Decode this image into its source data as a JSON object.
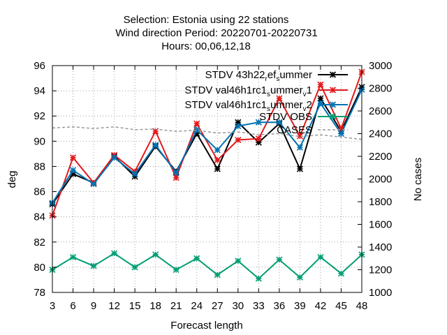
{
  "title": {
    "line1": "Selection: Estonia using     22 stations",
    "line2": "Wind direction   Period: 20220701-20220731",
    "line3": "Hours:  00,06,12,18"
  },
  "chart_data": {
    "type": "line",
    "xlabel": "Forecast length",
    "ylabel": "deg",
    "y2label": "No cases",
    "x": [
      3,
      6,
      9,
      12,
      15,
      18,
      21,
      24,
      27,
      30,
      33,
      36,
      39,
      42,
      45,
      48
    ],
    "xlim": [
      3,
      48
    ],
    "ylim": [
      78,
      96
    ],
    "y2lim": [
      1000,
      3000
    ],
    "yticks": [
      78,
      80,
      82,
      84,
      86,
      88,
      90,
      92,
      94,
      96
    ],
    "y2ticks": [
      1000,
      1200,
      1400,
      1600,
      1800,
      2000,
      2200,
      2400,
      2600,
      2800,
      3000
    ],
    "grid": true,
    "legend_position": "top-right",
    "series": [
      {
        "legend": [
          {
            "text": "STDV 43h22"
          },
          {
            "text": "r",
            "sub": true
          },
          {
            "text": "ef"
          },
          {
            "text": "s",
            "sub": true
          },
          {
            "text": "ummer"
          }
        ],
        "color": "#000000",
        "marker": "star",
        "dash": false,
        "axis": "y",
        "values": [
          85.0,
          87.4,
          86.7,
          88.8,
          87.2,
          89.6,
          87.6,
          90.6,
          87.8,
          91.5,
          89.9,
          91.4,
          87.8,
          93.4,
          90.8,
          94.3
        ]
      },
      {
        "legend": [
          {
            "text": "STDV val46h1rc1"
          },
          {
            "text": "s",
            "sub": true
          },
          {
            "text": "ummer"
          },
          {
            "text": "v",
            "sub": true
          },
          {
            "text": "1"
          }
        ],
        "color": "#e41a1c",
        "marker": "star",
        "dash": false,
        "axis": "y",
        "values": [
          84.1,
          88.7,
          86.7,
          88.9,
          87.6,
          90.8,
          87.1,
          91.4,
          88.5,
          90.1,
          90.2,
          93.4,
          90.4,
          94.5,
          91.0,
          95.5
        ]
      },
      {
        "legend": [
          {
            "text": "STDV val46h1rc1"
          },
          {
            "text": "s",
            "sub": true
          },
          {
            "text": "ummer"
          },
          {
            "text": "v",
            "sub": true
          },
          {
            "text": "2"
          }
        ],
        "color": "#0072b2",
        "marker": "star",
        "dash": false,
        "axis": "y",
        "values": [
          85.1,
          87.7,
          86.6,
          88.7,
          87.4,
          89.7,
          87.5,
          90.9,
          89.3,
          91.2,
          91.5,
          91.5,
          89.5,
          93.0,
          90.6,
          94.1
        ]
      },
      {
        "legend": [
          {
            "text": "STDV OBS"
          }
        ],
        "color": "#009e73",
        "marker": "star",
        "dash": false,
        "axis": "y",
        "values": [
          79.8,
          80.8,
          80.1,
          81.1,
          80.0,
          81.0,
          79.8,
          80.7,
          79.4,
          80.5,
          79.1,
          80.6,
          79.2,
          80.8,
          79.5,
          81.0
        ]
      },
      {
        "legend": [
          {
            "text": "CASES"
          }
        ],
        "color": "#999999",
        "marker": "none",
        "dash": true,
        "axis": "y2",
        "values": [
          2450,
          2460,
          2445,
          2460,
          2435,
          2440,
          2420,
          2430,
          2405,
          2415,
          2390,
          2400,
          2375,
          2390,
          2370,
          2350
        ]
      }
    ]
  }
}
